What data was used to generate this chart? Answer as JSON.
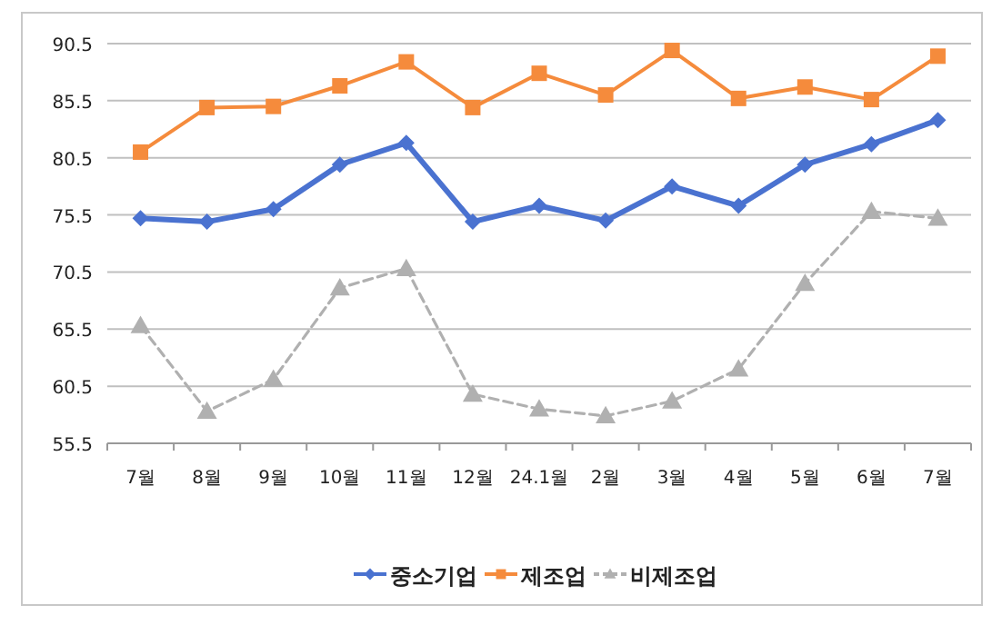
{
  "chart_data": {
    "type": "line",
    "categories": [
      "7월",
      "8월",
      "9월",
      "10월",
      "11월",
      "12월",
      "24.1월",
      "2월",
      "3월",
      "4월",
      "5월",
      "6월",
      "7월"
    ],
    "series": [
      {
        "name": "중소기업",
        "color": "#4a72d0",
        "marker": "diamond",
        "line_style": "solid",
        "values": [
          75.2,
          74.9,
          76.0,
          79.9,
          81.8,
          74.9,
          76.3,
          75.0,
          78.0,
          76.3,
          79.9,
          81.7,
          83.8
        ]
      },
      {
        "name": "제조업",
        "color": "#f58b3c",
        "marker": "square",
        "line_style": "solid",
        "values": [
          81.0,
          84.9,
          85.0,
          86.8,
          88.9,
          84.9,
          87.9,
          86.0,
          89.9,
          85.7,
          86.7,
          85.6,
          89.4
        ]
      },
      {
        "name": "비제조업",
        "color": "#b0b0b0",
        "marker": "triangle",
        "line_style": "dashed",
        "values": [
          65.8,
          58.3,
          61.1,
          69.1,
          70.8,
          59.8,
          58.5,
          57.9,
          59.2,
          62.0,
          69.5,
          75.8,
          75.2
        ]
      }
    ],
    "ylim": [
      55.5,
      90.5
    ],
    "yticks": [
      55.5,
      60.5,
      65.5,
      70.5,
      75.5,
      80.5,
      85.5,
      90.5
    ],
    "grid": "y",
    "legend": "bottom"
  }
}
